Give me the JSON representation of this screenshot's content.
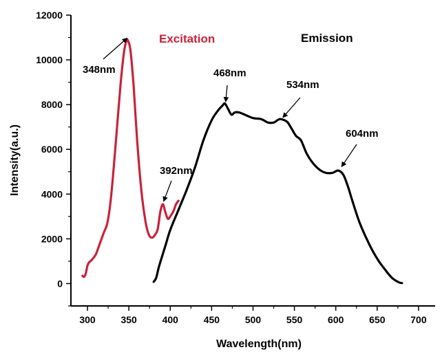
{
  "chart_data": {
    "type": "line",
    "title": "",
    "xlabel": "Wavelength(nm)",
    "ylabel": "Intensity(a.u.)",
    "xlim": [
      280,
      720
    ],
    "ylim": [
      -1000,
      12000
    ],
    "xticks": [
      300,
      350,
      400,
      450,
      500,
      550,
      600,
      650,
      700
    ],
    "xtick_labels": [
      "300",
      "350",
      "400",
      "450",
      "500",
      "550",
      "600",
      "650",
      "700"
    ],
    "yticks": [
      0,
      2000,
      4000,
      6000,
      8000,
      10000,
      12000
    ],
    "ytick_labels": [
      "0",
      "2000",
      "4000",
      "6000",
      "8000",
      "10000",
      "12000"
    ],
    "grid": false,
    "series": [
      {
        "name": "Excitation",
        "color": "#c8223a",
        "points": [
          [
            294,
            350
          ],
          [
            296,
            300
          ],
          [
            298,
            450
          ],
          [
            300,
            800
          ],
          [
            302,
            950
          ],
          [
            305,
            1050
          ],
          [
            310,
            1300
          ],
          [
            315,
            1800
          ],
          [
            320,
            2300
          ],
          [
            324,
            2700
          ],
          [
            328,
            3700
          ],
          [
            332,
            5300
          ],
          [
            336,
            7100
          ],
          [
            340,
            8900
          ],
          [
            344,
            10300
          ],
          [
            347,
            10850
          ],
          [
            349,
            10850
          ],
          [
            352,
            10400
          ],
          [
            356,
            8700
          ],
          [
            360,
            6400
          ],
          [
            365,
            4200
          ],
          [
            370,
            2800
          ],
          [
            374,
            2200
          ],
          [
            378,
            2050
          ],
          [
            382,
            2200
          ],
          [
            385,
            2450
          ],
          [
            388,
            3200
          ],
          [
            391,
            3550
          ],
          [
            394,
            3200
          ],
          [
            397,
            2900
          ],
          [
            400,
            3000
          ],
          [
            404,
            3250
          ],
          [
            407,
            3550
          ],
          [
            410,
            3700
          ]
        ]
      },
      {
        "name": "Emission",
        "color": "#000000",
        "points": [
          [
            380,
            80
          ],
          [
            383,
            250
          ],
          [
            386,
            700
          ],
          [
            390,
            1200
          ],
          [
            395,
            1800
          ],
          [
            400,
            2400
          ],
          [
            410,
            3300
          ],
          [
            420,
            4200
          ],
          [
            430,
            5200
          ],
          [
            440,
            6400
          ],
          [
            450,
            7300
          ],
          [
            458,
            7750
          ],
          [
            463,
            7950
          ],
          [
            466,
            8050
          ],
          [
            470,
            7800
          ],
          [
            474,
            7550
          ],
          [
            478,
            7650
          ],
          [
            483,
            7650
          ],
          [
            490,
            7550
          ],
          [
            500,
            7400
          ],
          [
            510,
            7350
          ],
          [
            518,
            7200
          ],
          [
            525,
            7200
          ],
          [
            532,
            7350
          ],
          [
            538,
            7300
          ],
          [
            542,
            7200
          ],
          [
            547,
            6900
          ],
          [
            552,
            6600
          ],
          [
            558,
            6400
          ],
          [
            565,
            5800
          ],
          [
            572,
            5400
          ],
          [
            580,
            5100
          ],
          [
            588,
            4950
          ],
          [
            596,
            4950
          ],
          [
            602,
            5050
          ],
          [
            606,
            5000
          ],
          [
            610,
            4800
          ],
          [
            615,
            4300
          ],
          [
            620,
            3700
          ],
          [
            628,
            2800
          ],
          [
            636,
            2100
          ],
          [
            644,
            1500
          ],
          [
            652,
            1000
          ],
          [
            660,
            600
          ],
          [
            668,
            250
          ],
          [
            676,
            60
          ],
          [
            680,
            20
          ]
        ]
      }
    ],
    "legend": [
      {
        "label": "Excitation",
        "color": "#c8223a"
      },
      {
        "label": "Emission",
        "color": "#000000"
      }
    ],
    "annotations": [
      {
        "text": "348nm",
        "x": 348,
        "y": 10850
      },
      {
        "text": "392nm",
        "x": 392,
        "y": 3550
      },
      {
        "text": "468nm",
        "x": 467,
        "y": 8000
      },
      {
        "text": "534nm",
        "x": 536,
        "y": 7300
      },
      {
        "text": "604nm",
        "x": 607,
        "y": 5100
      }
    ]
  }
}
